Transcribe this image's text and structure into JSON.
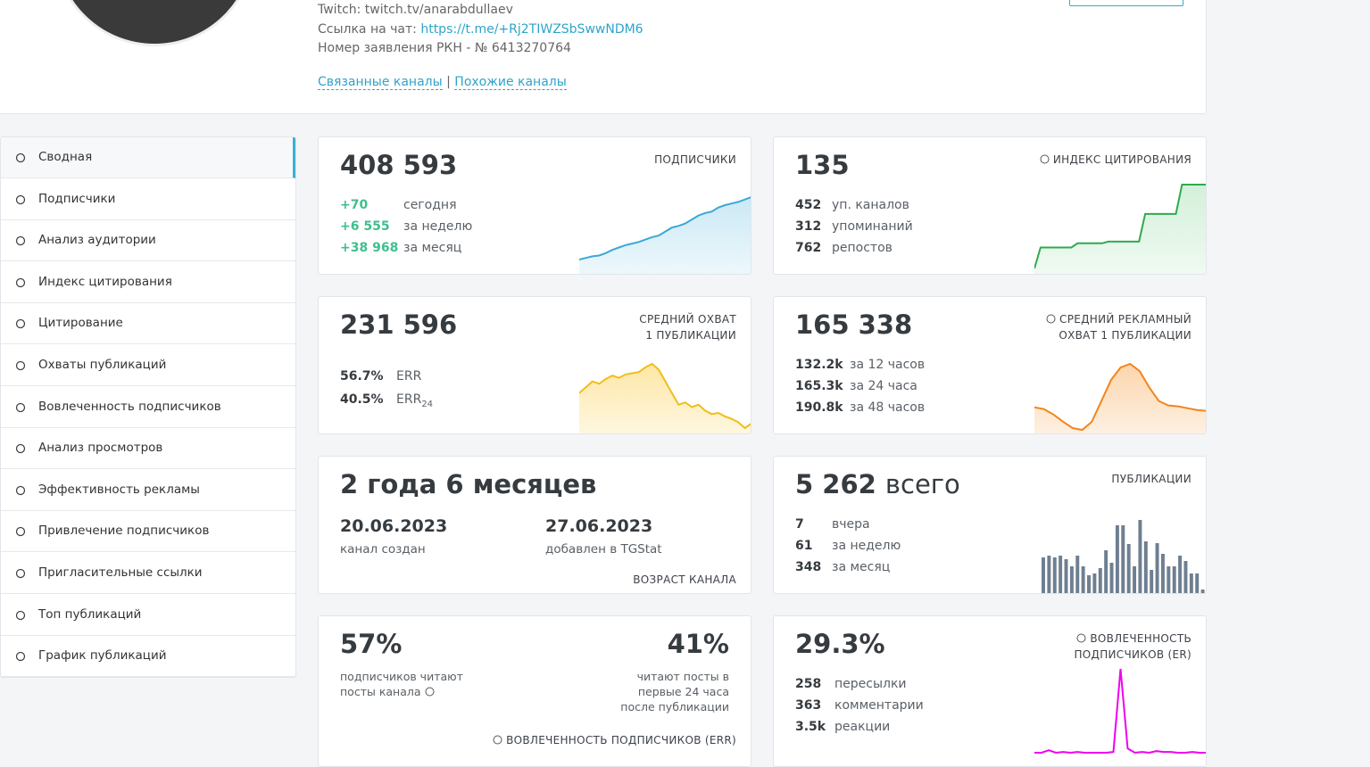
{
  "header": {
    "twitch": "Twitch: twitch.tv/anarabdullaev",
    "chat_label": "Ссылка на чат:",
    "chat_link": "https://t.me/+Rj2TIWZSbSwwNDM6",
    "rkn": "Номер заявления РКН - № 6413270764",
    "links": [
      "Связанные каналы",
      "Похожие каналы"
    ],
    "separator": "|"
  },
  "menu": [
    "Сводная",
    "Подписчики",
    "Анализ аудитории",
    "Индекс цитирования",
    "Цитирование",
    "Охваты публикаций",
    "Вовлеченность подписчиков",
    "Анализ просмотров",
    "Эффективность рекламы",
    "Привлечение подписчиков",
    "Пригласительные ссылки",
    "Топ публикаций",
    "График публикаций"
  ],
  "cards": [
    {
      "value": "408 593",
      "label": [
        "ПОДПИСЧИКИ"
      ],
      "rows": [
        {
          "value": "+70",
          "label": "сегодня"
        },
        {
          "value": "+6 555",
          "label": "за неделю"
        },
        {
          "value": "+38 968",
          "label": "за месяц"
        }
      ],
      "sparkline": [
        0,
        2,
        4,
        5,
        8,
        12,
        15,
        18,
        20,
        22,
        25,
        28,
        30,
        35,
        40,
        42,
        45,
        50,
        55,
        58,
        60,
        65,
        68,
        70,
        72,
        75,
        78
      ]
    },
    {
      "value": "135",
      "label": [
        "ИНДЕКС ЦИТИРОВАНИЯ"
      ],
      "rows": [
        {
          "value": "452",
          "label": "уп. каналов"
        },
        {
          "value": "312",
          "label": "упоминаний"
        },
        {
          "value": "762",
          "label": "репостов"
        }
      ],
      "sparkline": [
        0,
        25,
        25,
        25,
        25,
        25,
        25,
        30,
        30,
        30,
        30,
        30,
        32,
        32,
        32,
        32,
        32,
        32,
        65,
        65,
        65,
        65,
        65,
        65,
        100,
        100,
        100,
        100,
        100
      ]
    },
    {
      "value": "231 596",
      "label": [
        "СРЕДНИЙ ОХВАТ",
        "1 ПУБЛИКАЦИИ"
      ],
      "rows": [
        {
          "value": "56.7%",
          "label": "ERR"
        },
        {
          "value": "40.5%",
          "label": "ERR",
          "sub": "24"
        }
      ],
      "sparkline": [
        40,
        45,
        50,
        48,
        52,
        55,
        53,
        56,
        57,
        58,
        62,
        65,
        60,
        50,
        40,
        30,
        32,
        28,
        30,
        25,
        22,
        23,
        20,
        18,
        15,
        10,
        14
      ]
    },
    {
      "value": "165 338",
      "label": [
        "СРЕДНИЙ РЕКЛАМНЫЙ",
        "ОХВАТ 1 ПУБЛИКАЦИИ"
      ],
      "rows": [
        {
          "value": "132.2k",
          "label": "за 12 часов"
        },
        {
          "value": "165.3k",
          "label": "за 24 часа"
        },
        {
          "value": "190.8k",
          "label": "за 48 часов"
        }
      ],
      "sparkline": [
        28,
        26,
        20,
        12,
        5,
        3,
        12,
        35,
        58,
        72,
        76,
        68,
        50,
        35,
        30,
        29,
        27,
        25,
        24
      ]
    },
    {
      "value": "2 года 6 месяцев",
      "created": {
        "date": "20.06.2023",
        "label": "канал создан"
      },
      "added": {
        "date": "27.06.2023",
        "label": "добавлен в TGStat"
      },
      "footer": "ВОЗРАСТ КАНАЛА"
    },
    {
      "value": "5 262",
      "unit": "всего",
      "label": [
        "ПУБЛИКАЦИИ"
      ],
      "rows": [
        {
          "value": "7",
          "label": "вчера"
        },
        {
          "value": "61",
          "label": "за неделю"
        },
        {
          "value": "348",
          "label": "за месяц"
        }
      ],
      "bars": [
        40,
        42,
        40,
        42,
        38,
        30,
        42,
        30,
        20,
        22,
        28,
        48,
        34,
        76,
        76,
        55,
        30,
        82,
        58,
        26,
        56,
        44,
        30,
        30,
        42,
        36,
        22,
        22,
        4
      ]
    },
    {
      "left": {
        "value": "57%",
        "text": "подписчиков читают посты канала"
      },
      "right": {
        "value": "41%",
        "text": "читают посты в первые 24 часа после публикации"
      },
      "footer": "ВОВЛЕЧЕННОСТЬ ПОДПИСЧИКОВ (ERR)"
    },
    {
      "value": "29.3%",
      "label": [
        "ВОВЛЕЧЕННОСТЬ",
        "ПОДПИСЧИКОВ (ER)"
      ],
      "rows": [
        {
          "value": "258",
          "label": "пересылки"
        },
        {
          "value": "363",
          "label": "комментарии"
        },
        {
          "value": "3.5k",
          "label": "реакции"
        }
      ],
      "sparkline": [
        0,
        0,
        3,
        0,
        1,
        0,
        1,
        0,
        0,
        0,
        0,
        1,
        100,
        5,
        0,
        1,
        0,
        2,
        1,
        1,
        0,
        0,
        1,
        0,
        0
      ]
    }
  ]
}
